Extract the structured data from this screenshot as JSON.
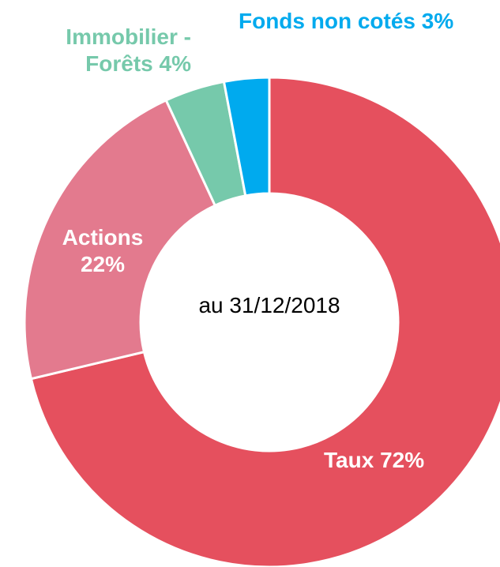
{
  "chart_data": {
    "type": "donut",
    "categories": [
      "Taux",
      "Actions",
      "Immobilier - Forêts",
      "Fonds non cotés"
    ],
    "values": [
      72,
      22,
      4,
      3
    ],
    "value_labels": [
      "72%",
      "22%",
      "4%",
      "3%"
    ],
    "colors": [
      "#e5505e",
      "#e37a8e",
      "#76c9ab",
      "#00aaee"
    ],
    "annotation": "au 31/12/2018"
  }
}
